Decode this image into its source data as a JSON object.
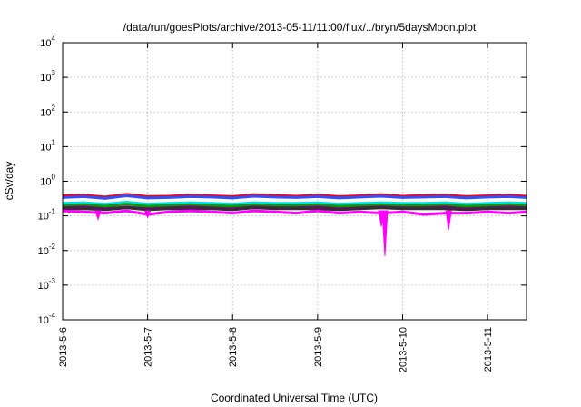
{
  "chart_data": {
    "type": "line",
    "title": "/data/run/goesPlots/archive/2013-05-11/11:00/flux/../bryn/5daysMoon.plot",
    "xlabel": "Coordinated Universal Time (UTC)",
    "ylabel": "cSv/day",
    "yscale": "log",
    "ylim": [
      0.0001,
      10000
    ],
    "y_ticks": [
      {
        "base": "10",
        "exp": "-4",
        "value": 0.0001
      },
      {
        "base": "10",
        "exp": "-3",
        "value": 0.001
      },
      {
        "base": "10",
        "exp": "-2",
        "value": 0.01
      },
      {
        "base": "10",
        "exp": "-1",
        "value": 0.1
      },
      {
        "base": "10",
        "exp": "0",
        "value": 1
      },
      {
        "base": "10",
        "exp": "1",
        "value": 10
      },
      {
        "base": "10",
        "exp": "2",
        "value": 100
      },
      {
        "base": "10",
        "exp": "3",
        "value": 1000
      },
      {
        "base": "10",
        "exp": "4",
        "value": 10000
      }
    ],
    "xlim": [
      "2013-05-06 00:00",
      "2013-05-11 11:00"
    ],
    "x_ticks": [
      {
        "label": "2013-5-6",
        "value": "2013-05-06 00:00"
      },
      {
        "label": "2013-5-7",
        "value": "2013-05-07 00:00"
      },
      {
        "label": "2013-5-8",
        "value": "2013-05-08 00:00"
      },
      {
        "label": "2013-5-9",
        "value": "2013-05-09 00:00"
      },
      {
        "label": "2013-5-10",
        "value": "2013-05-10 00:00"
      },
      {
        "label": "2013-5-11",
        "value": "2013-05-11 00:00"
      }
    ],
    "grid": true,
    "legend": "none",
    "sample_times": [
      "2013-05-06 00:00",
      "2013-05-06 06:00",
      "2013-05-06 12:00",
      "2013-05-06 18:00",
      "2013-05-07 00:00",
      "2013-05-07 06:00",
      "2013-05-07 12:00",
      "2013-05-07 18:00",
      "2013-05-08 00:00",
      "2013-05-08 06:00",
      "2013-05-08 12:00",
      "2013-05-08 18:00",
      "2013-05-09 00:00",
      "2013-05-09 06:00",
      "2013-05-09 12:00",
      "2013-05-09 18:00",
      "2013-05-10 00:00",
      "2013-05-10 06:00",
      "2013-05-10 12:00",
      "2013-05-10 18:00",
      "2013-05-11 00:00",
      "2013-05-11 06:00",
      "2013-05-11 11:00"
    ],
    "series": [
      {
        "color": "#ff0000",
        "values": [
          0.38,
          0.4,
          0.35,
          0.42,
          0.36,
          0.37,
          0.4,
          0.38,
          0.36,
          0.41,
          0.39,
          0.37,
          0.4,
          0.36,
          0.38,
          0.41,
          0.37,
          0.39,
          0.4,
          0.36,
          0.38,
          0.4,
          0.37
        ]
      },
      {
        "color": "#3050ff",
        "values": [
          0.34,
          0.36,
          0.32,
          0.38,
          0.33,
          0.34,
          0.36,
          0.35,
          0.33,
          0.37,
          0.35,
          0.34,
          0.36,
          0.33,
          0.35,
          0.37,
          0.34,
          0.35,
          0.36,
          0.33,
          0.35,
          0.36,
          0.34
        ]
      },
      {
        "color": "#00e0e0",
        "values": [
          0.23,
          0.24,
          0.22,
          0.25,
          0.22,
          0.23,
          0.24,
          0.23,
          0.22,
          0.24,
          0.23,
          0.23,
          0.24,
          0.22,
          0.23,
          0.24,
          0.23,
          0.23,
          0.24,
          0.22,
          0.23,
          0.24,
          0.23
        ]
      },
      {
        "color": "#00a000",
        "values": [
          0.2,
          0.21,
          0.19,
          0.22,
          0.19,
          0.2,
          0.21,
          0.2,
          0.19,
          0.21,
          0.2,
          0.2,
          0.21,
          0.19,
          0.2,
          0.21,
          0.2,
          0.2,
          0.21,
          0.19,
          0.2,
          0.21,
          0.2
        ]
      },
      {
        "color": "#800080",
        "values": [
          0.17,
          0.18,
          0.16,
          0.18,
          0.16,
          0.17,
          0.18,
          0.17,
          0.16,
          0.18,
          0.17,
          0.17,
          0.18,
          0.16,
          0.17,
          0.18,
          0.17,
          0.17,
          0.18,
          0.16,
          0.17,
          0.18,
          0.17
        ]
      },
      {
        "color": "#303030",
        "values": [
          0.16,
          0.16,
          0.15,
          0.17,
          0.15,
          0.16,
          0.16,
          0.16,
          0.15,
          0.17,
          0.16,
          0.16,
          0.16,
          0.15,
          0.16,
          0.17,
          0.16,
          0.16,
          0.16,
          0.15,
          0.16,
          0.16,
          0.16
        ]
      },
      {
        "color": "#ff00ff",
        "values": [
          0.14,
          0.13,
          0.12,
          0.14,
          0.11,
          0.13,
          0.14,
          0.13,
          0.12,
          0.14,
          0.13,
          0.12,
          0.14,
          0.12,
          0.13,
          0.12,
          0.13,
          0.11,
          0.12,
          0.12,
          0.13,
          0.12,
          0.13
        ]
      }
    ],
    "dips": [
      {
        "color": "#ff00ff",
        "time": "2013-05-09 18:00",
        "value": 0.05
      },
      {
        "color": "#ff00ff",
        "time": "2013-05-09 19:00",
        "value": 0.007
      },
      {
        "color": "#ff00ff",
        "time": "2013-05-10 13:00",
        "value": 0.04
      },
      {
        "color": "#ff00ff",
        "time": "2013-05-06 10:00",
        "value": 0.08
      },
      {
        "color": "#ff00ff",
        "time": "2013-05-07 00:00",
        "value": 0.09
      }
    ]
  }
}
